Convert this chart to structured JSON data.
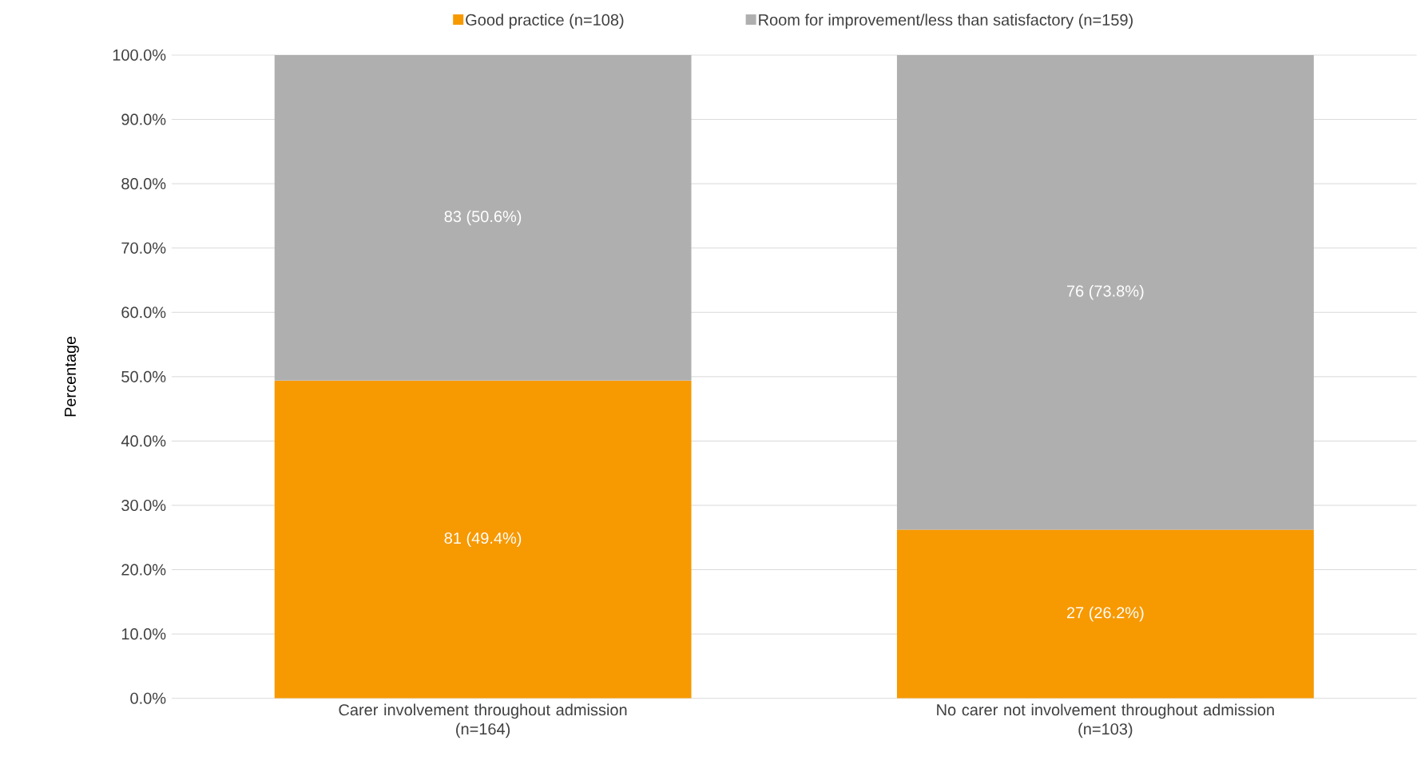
{
  "chart_data": {
    "type": "bar",
    "stacked": true,
    "ylabel": "Percentage",
    "categories": [
      "Carer involvement throughout admission\n(n=164)",
      "No carer not involvement throughout admission\n(n=103)"
    ],
    "series": [
      {
        "name": "Good practice (n=108)",
        "color": "#f79900",
        "values": [
          49.4,
          26.2
        ],
        "value_labels": [
          "81 (49.4%)",
          "27 (26.2%)"
        ]
      },
      {
        "name": "Room for improvement/less than satisfactory (n=159)",
        "color": "#afafaf",
        "values": [
          50.6,
          73.8
        ],
        "value_labels": [
          "83 (50.6%)",
          "76 (73.8%)"
        ]
      }
    ],
    "ylim": [
      0,
      100
    ],
    "yticks": [
      {
        "value": 0,
        "label": "0.0%"
      },
      {
        "value": 10,
        "label": "10.0%"
      },
      {
        "value": 20,
        "label": "20.0%"
      },
      {
        "value": 30,
        "label": "30.0%"
      },
      {
        "value": 40,
        "label": "40.0%"
      },
      {
        "value": 50,
        "label": "50.0%"
      },
      {
        "value": 60,
        "label": "60.0%"
      },
      {
        "value": 70,
        "label": "70.0%"
      },
      {
        "value": 80,
        "label": "80.0%"
      },
      {
        "value": 90,
        "label": "90.0%"
      },
      {
        "value": 100,
        "label": "100.0%"
      }
    ],
    "grid": "y",
    "legend": "top"
  }
}
